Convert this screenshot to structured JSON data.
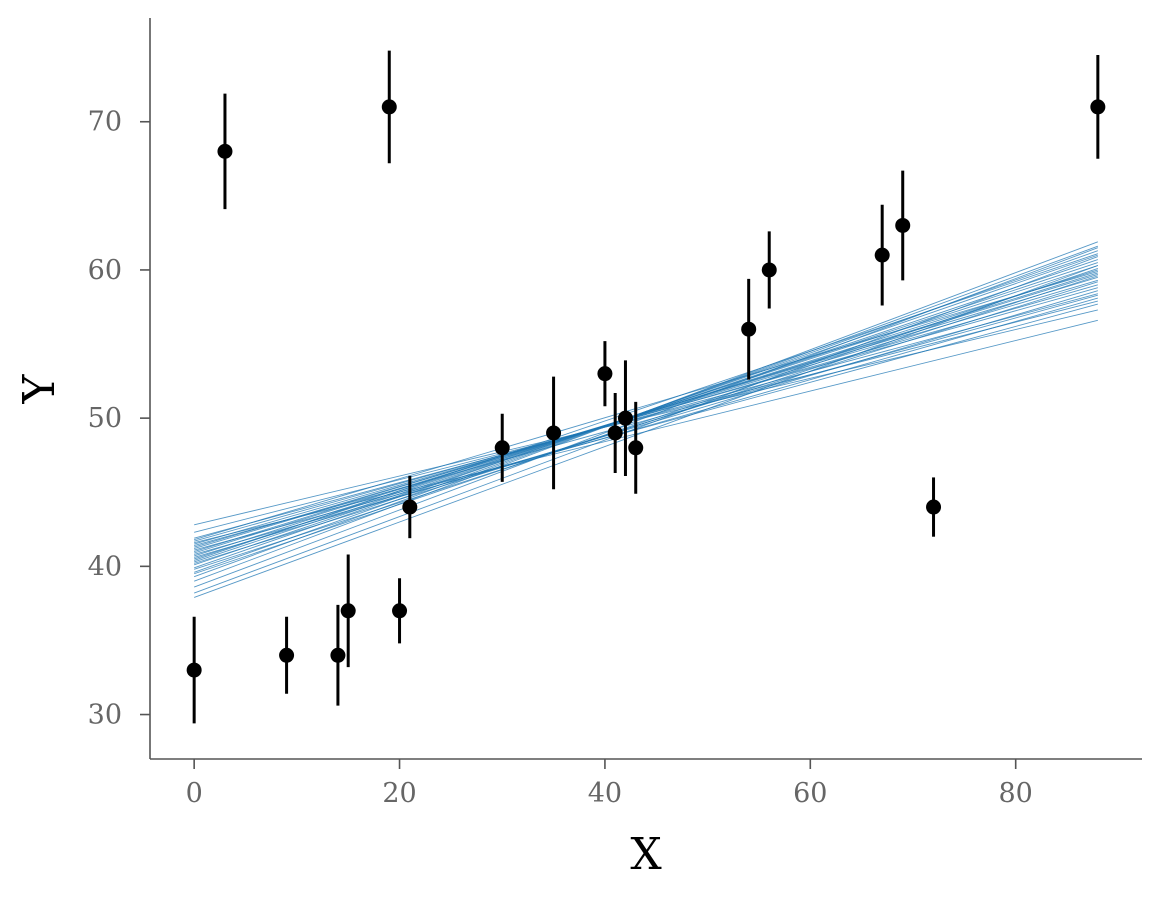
{
  "chart_data": {
    "type": "scatter",
    "xlabel": "X",
    "ylabel": "Y",
    "xlim": [
      -4.3,
      92.3
    ],
    "ylim": [
      27,
      77
    ],
    "x_ticks": [
      0,
      20,
      40,
      60,
      80
    ],
    "y_ticks": [
      30,
      40,
      50,
      60,
      70
    ],
    "grid": false,
    "series": [
      {
        "type": "errorbar",
        "color": "#000000",
        "points": [
          {
            "x": 0,
            "y": 33,
            "err": 3.6
          },
          {
            "x": 3,
            "y": 68,
            "err": 3.9
          },
          {
            "x": 9,
            "y": 34,
            "err": 2.6
          },
          {
            "x": 14,
            "y": 34,
            "err": 3.4
          },
          {
            "x": 15,
            "y": 37,
            "err": 3.8
          },
          {
            "x": 19,
            "y": 71,
            "err": 3.8
          },
          {
            "x": 20,
            "y": 37,
            "err": 2.2
          },
          {
            "x": 21,
            "y": 44,
            "err": 2.1
          },
          {
            "x": 30,
            "y": 48,
            "err": 2.3
          },
          {
            "x": 35,
            "y": 49,
            "err": 3.8
          },
          {
            "x": 40,
            "y": 53,
            "err": 2.2
          },
          {
            "x": 41,
            "y": 49,
            "err": 2.7
          },
          {
            "x": 42,
            "y": 50,
            "err": 3.9
          },
          {
            "x": 43,
            "y": 48,
            "err": 3.1
          },
          {
            "x": 54,
            "y": 56,
            "err": 3.4
          },
          {
            "x": 56,
            "y": 60,
            "err": 2.6
          },
          {
            "x": 67,
            "y": 61,
            "err": 3.4
          },
          {
            "x": 69,
            "y": 63,
            "err": 3.7
          },
          {
            "x": 72,
            "y": 44,
            "err": 2.0
          },
          {
            "x": 88,
            "y": 71,
            "err": 3.5
          }
        ]
      },
      {
        "type": "lines",
        "color": "#1f77b4",
        "x_range": [
          0,
          88
        ],
        "lines": [
          {
            "y0": 42.8,
            "y1": 57.3
          },
          {
            "y0": 42.3,
            "y1": 57.9
          },
          {
            "y0": 41.9,
            "y1": 58.4
          },
          {
            "y0": 41.7,
            "y1": 58.8
          },
          {
            "y0": 41.5,
            "y1": 59.0
          },
          {
            "y0": 41.3,
            "y1": 59.3
          },
          {
            "y0": 41.2,
            "y1": 59.5
          },
          {
            "y0": 41.0,
            "y1": 59.7
          },
          {
            "y0": 40.9,
            "y1": 59.8
          },
          {
            "y0": 40.7,
            "y1": 60.0
          },
          {
            "y0": 40.5,
            "y1": 60.3
          },
          {
            "y0": 40.3,
            "y1": 60.5
          },
          {
            "y0": 40.1,
            "y1": 60.7
          },
          {
            "y0": 39.9,
            "y1": 61.0
          },
          {
            "y0": 39.6,
            "y1": 61.3
          },
          {
            "y0": 39.3,
            "y1": 61.6
          },
          {
            "y0": 39.0,
            "y1": 61.9
          },
          {
            "y0": 38.6,
            "y1": 61.5
          },
          {
            "y0": 38.2,
            "y1": 60.9
          },
          {
            "y0": 37.9,
            "y1": 60.3
          },
          {
            "y0": 41.6,
            "y1": 56.6
          },
          {
            "y0": 41.1,
            "y1": 57.7
          },
          {
            "y0": 40.6,
            "y1": 58.6
          },
          {
            "y0": 40.2,
            "y1": 59.2
          },
          {
            "y0": 41.8,
            "y1": 59.9
          },
          {
            "y0": 40.8,
            "y1": 58.1
          },
          {
            "y0": 39.8,
            "y1": 59.6
          },
          {
            "y0": 39.5,
            "y1": 60.1
          },
          {
            "y0": 41.4,
            "y1": 58.3
          },
          {
            "y0": 40.4,
            "y1": 61.1
          }
        ]
      }
    ]
  }
}
